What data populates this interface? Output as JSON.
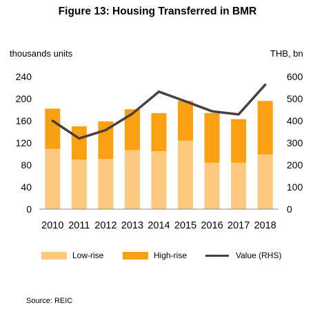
{
  "chart_data": {
    "type": "bar",
    "title": "Figure 13: Housing Transferred in BMR",
    "left_axis_label": "thousands units",
    "right_axis_label": "THB, bn",
    "categories": [
      "2010",
      "2011",
      "2012",
      "2013",
      "2014",
      "2015",
      "2016",
      "2017",
      "2018"
    ],
    "stacked": true,
    "ylim": [
      0,
      240
    ],
    "yticks": [
      0,
      40,
      80,
      120,
      160,
      200,
      240
    ],
    "y2lim": [
      0,
      600
    ],
    "y2ticks": [
      0,
      100,
      200,
      300,
      400,
      500,
      600
    ],
    "grid": false,
    "legend_position": "bottom",
    "series": [
      {
        "name": "Low-rise",
        "type": "bar",
        "axis": "left",
        "color": "#FDC97F",
        "values": [
          109,
          90,
          91,
          107,
          105,
          124,
          84,
          84,
          99
        ]
      },
      {
        "name": "High-rise",
        "type": "bar",
        "axis": "left",
        "color": "#FBA012",
        "values": [
          73,
          60,
          68,
          74,
          69,
          72,
          90,
          79,
          97
        ]
      },
      {
        "name": "Value (RHS)",
        "type": "line",
        "axis": "right",
        "color": "#4A3F3F",
        "values": [
          400,
          320,
          358,
          432,
          532,
          488,
          443,
          429,
          563
        ]
      }
    ]
  },
  "source": "Source: REIC"
}
